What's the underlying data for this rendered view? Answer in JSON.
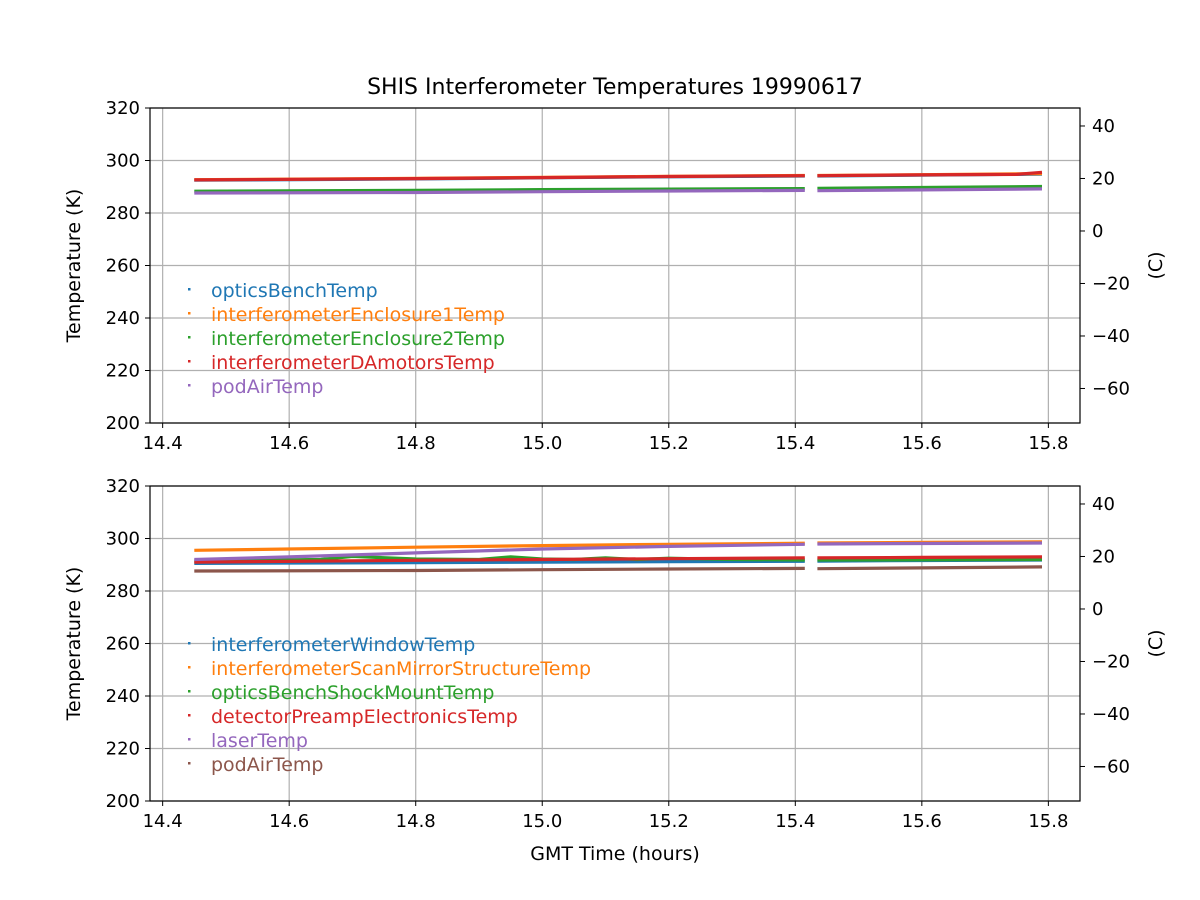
{
  "figure": {
    "title": "SHIS Interferometer Temperatures 19990617",
    "xlabel": "GMT Time (hours)"
  },
  "chart_data": [
    {
      "type": "scatter",
      "ylabel": "Temperature (K)",
      "ylabel_right": "(C)",
      "xlim": [
        14.38,
        15.85
      ],
      "ylim": [
        200,
        320
      ],
      "ylim_right": [
        -73.15,
        46.85
      ],
      "xticks": [
        14.4,
        14.6,
        14.8,
        15.0,
        15.2,
        15.4,
        15.6,
        15.8
      ],
      "yticks": [
        200,
        220,
        240,
        260,
        280,
        300,
        320
      ],
      "yticks_right": [
        -60,
        -40,
        -20,
        0,
        20,
        40
      ],
      "grid": true,
      "legend_position": "lower-left",
      "gap": [
        15.415,
        15.435
      ],
      "series": [
        {
          "name": "opticsBenchTemp",
          "color": "#1f77b4",
          "x": [
            14.45,
            14.8,
            15.0,
            15.2,
            15.415,
            15.435,
            15.6,
            15.79
          ],
          "y": [
            292.5,
            293.0,
            293.4,
            293.8,
            294.1,
            294.1,
            294.4,
            294.8
          ]
        },
        {
          "name": "interferometerEnclosure1Temp",
          "color": "#ff7f0e",
          "x": [
            14.45,
            14.8,
            15.0,
            15.2,
            15.415,
            15.435,
            15.6,
            15.79
          ],
          "y": [
            292.7,
            293.2,
            293.6,
            294.0,
            294.3,
            294.3,
            294.6,
            295.0
          ]
        },
        {
          "name": "interferometerEnclosure2Temp",
          "color": "#2ca02c",
          "x": [
            14.45,
            14.8,
            15.0,
            15.2,
            15.415,
            15.435,
            15.6,
            15.79
          ],
          "y": [
            288.3,
            288.6,
            288.9,
            289.1,
            289.3,
            289.4,
            289.7,
            290.1
          ]
        },
        {
          "name": "interferometerDAmotorsTemp",
          "color": "#d62728",
          "x": [
            14.45,
            14.8,
            15.0,
            15.2,
            15.415,
            15.435,
            15.6,
            15.75,
            15.79
          ],
          "y": [
            292.6,
            293.1,
            293.5,
            293.9,
            294.2,
            294.2,
            294.5,
            294.7,
            295.5
          ]
        },
        {
          "name": "podAirTemp",
          "color": "#9467bd",
          "x": [
            14.45,
            14.8,
            15.0,
            15.2,
            15.415,
            15.435,
            15.6,
            15.79
          ],
          "y": [
            287.6,
            287.8,
            288.1,
            288.4,
            288.6,
            288.5,
            288.8,
            289.2
          ]
        }
      ]
    },
    {
      "type": "scatter",
      "ylabel": "Temperature (K)",
      "ylabel_right": "(C)",
      "xlim": [
        14.38,
        15.85
      ],
      "ylim": [
        200,
        320
      ],
      "ylim_right": [
        -73.15,
        46.85
      ],
      "xticks": [
        14.4,
        14.6,
        14.8,
        15.0,
        15.2,
        15.4,
        15.6,
        15.8
      ],
      "yticks": [
        200,
        220,
        240,
        260,
        280,
        300,
        320
      ],
      "yticks_right": [
        -60,
        -40,
        -20,
        0,
        20,
        40
      ],
      "grid": true,
      "legend_position": "lower-left",
      "gap": [
        15.415,
        15.435
      ],
      "series": [
        {
          "name": "interferometerWindowTemp",
          "color": "#1f77b4",
          "x": [
            14.45,
            14.8,
            15.0,
            15.2,
            15.415,
            15.435,
            15.6,
            15.79
          ],
          "y": [
            290.5,
            290.8,
            291.0,
            291.2,
            291.3,
            291.4,
            291.6,
            291.8
          ]
        },
        {
          "name": "interferometerScanMirrorStructureTemp",
          "color": "#ff7f0e",
          "x": [
            14.45,
            14.6,
            14.8,
            15.0,
            15.2,
            15.415,
            15.435,
            15.6,
            15.79
          ],
          "y": [
            295.5,
            296.0,
            296.7,
            297.3,
            297.8,
            298.2,
            298.3,
            298.5,
            298.7
          ]
        },
        {
          "name": "opticsBenchShockMountTemp",
          "color": "#2ca02c",
          "x": [
            14.45,
            14.65,
            14.7,
            14.8,
            14.9,
            14.95,
            15.0,
            15.05,
            15.1,
            15.15,
            15.2,
            15.3,
            15.415,
            15.435,
            15.79
          ],
          "y": [
            291.5,
            292.0,
            293.2,
            292.2,
            292.0,
            293.0,
            292.2,
            292.0,
            292.6,
            292.0,
            292.5,
            292.0,
            291.8,
            291.8,
            292.0
          ]
        },
        {
          "name": "detectorPreampElectronicsTemp",
          "color": "#d62728",
          "x": [
            14.45,
            14.8,
            15.0,
            15.2,
            15.415,
            15.435,
            15.6,
            15.79
          ],
          "y": [
            291.0,
            291.7,
            292.0,
            292.3,
            292.6,
            292.6,
            292.8,
            293.0
          ]
        },
        {
          "name": "laserTemp",
          "color": "#9467bd",
          "x": [
            14.45,
            14.6,
            14.8,
            15.0,
            15.2,
            15.415,
            15.435,
            15.6,
            15.79
          ],
          "y": [
            292.0,
            293.0,
            294.5,
            296.0,
            297.0,
            297.8,
            297.9,
            298.1,
            298.3
          ]
        },
        {
          "name": "podAirTemp",
          "color": "#8c564b",
          "x": [
            14.45,
            14.8,
            15.0,
            15.2,
            15.415,
            15.435,
            15.6,
            15.79
          ],
          "y": [
            287.6,
            287.8,
            288.1,
            288.4,
            288.6,
            288.5,
            288.8,
            289.2
          ]
        }
      ]
    }
  ]
}
